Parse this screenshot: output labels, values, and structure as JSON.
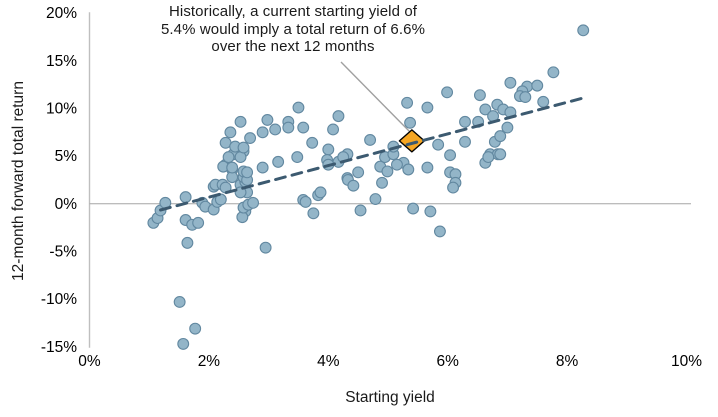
{
  "chart_data": {
    "type": "scatter",
    "title": "",
    "xlabel": "Starting yield",
    "ylabel": "12-month forward total return",
    "xlim": [
      0,
      10
    ],
    "ylim": [
      -15,
      20
    ],
    "x_ticks": [
      {
        "v": 0,
        "label": "0%"
      },
      {
        "v": 2,
        "label": "2%"
      },
      {
        "v": 4,
        "label": "4%"
      },
      {
        "v": 6,
        "label": "6%"
      },
      {
        "v": 8,
        "label": "8%"
      },
      {
        "v": 10,
        "label": "10%"
      }
    ],
    "y_ticks": [
      {
        "v": 20,
        "label": "20%"
      },
      {
        "v": 15,
        "label": "15%"
      },
      {
        "v": 10,
        "label": "10%"
      },
      {
        "v": 5,
        "label": "5%"
      },
      {
        "v": 0,
        "label": "0%"
      },
      {
        "v": -5,
        "label": "-5%"
      },
      {
        "v": -10,
        "label": "-10%"
      },
      {
        "v": -15,
        "label": "-15%"
      }
    ],
    "grid": "zero-line-only",
    "legend": "none",
    "annotation": {
      "lines": [
        "Historically, a current starting yield of",
        "5.4% would imply a total return of 6.6%",
        "over the next 12 months"
      ]
    },
    "highlight_point": {
      "x": 5.4,
      "y": 6.6,
      "shape": "diamond"
    },
    "trend_line": {
      "style": "dashed",
      "x1": 1.19,
      "y1": -0.65,
      "x2": 8.3,
      "y2": 11.15
    },
    "points": [
      [
        1.07,
        -2.0
      ],
      [
        1.14,
        -1.5
      ],
      [
        1.19,
        -0.7
      ],
      [
        1.27,
        0.1
      ],
      [
        1.51,
        -10.3
      ],
      [
        1.77,
        -13.1
      ],
      [
        1.57,
        -14.7
      ],
      [
        1.61,
        0.7
      ],
      [
        1.89,
        0.1
      ],
      [
        1.94,
        -0.3
      ],
      [
        2.08,
        -0.6
      ],
      [
        2.14,
        0.2
      ],
      [
        2.2,
        0.45
      ],
      [
        1.61,
        -1.7
      ],
      [
        1.72,
        -2.2
      ],
      [
        1.82,
        -2.0
      ],
      [
        1.64,
        -4.1
      ],
      [
        2.08,
        1.8
      ],
      [
        2.11,
        2.0
      ],
      [
        2.23,
        2.0
      ],
      [
        2.28,
        1.7
      ],
      [
        2.53,
        2.0
      ],
      [
        2.61,
        -0.8
      ],
      [
        2.56,
        -1.4
      ],
      [
        2.58,
        -0.4
      ],
      [
        2.66,
        -0.1
      ],
      [
        2.74,
        0.1
      ],
      [
        2.64,
        1.2
      ],
      [
        2.53,
        1.2
      ],
      [
        2.61,
        2.3
      ],
      [
        2.28,
        6.4
      ],
      [
        2.41,
        5.2
      ],
      [
        2.58,
        5.5
      ],
      [
        2.28,
        4.1
      ],
      [
        2.39,
        3.6
      ],
      [
        2.58,
        2.8
      ],
      [
        2.39,
        2.8
      ],
      [
        2.64,
        2.5
      ],
      [
        2.33,
        4.9
      ],
      [
        2.53,
        4.9
      ],
      [
        2.24,
        3.9
      ],
      [
        2.39,
        3.8
      ],
      [
        2.58,
        3.4
      ],
      [
        2.64,
        3.3
      ],
      [
        2.44,
        6.0
      ],
      [
        2.58,
        5.9
      ],
      [
        2.36,
        7.5
      ],
      [
        2.53,
        8.6
      ],
      [
        2.69,
        6.9
      ],
      [
        2.9,
        7.5
      ],
      [
        2.98,
        8.8
      ],
      [
        3.11,
        7.8
      ],
      [
        3.33,
        8.6
      ],
      [
        3.33,
        8.0
      ],
      [
        3.58,
        8.0
      ],
      [
        3.5,
        10.1
      ],
      [
        3.73,
        6.4
      ],
      [
        3.48,
        4.9
      ],
      [
        3.16,
        4.4
      ],
      [
        2.9,
        3.8
      ],
      [
        3.58,
        0.4
      ],
      [
        3.62,
        0.2
      ],
      [
        3.83,
        0.9
      ],
      [
        3.87,
        1.2
      ],
      [
        3.75,
        -1.0
      ],
      [
        2.95,
        -4.6
      ],
      [
        4.17,
        9.2
      ],
      [
        4.08,
        7.8
      ],
      [
        4.0,
        5.7
      ],
      [
        3.98,
        4.6
      ],
      [
        4.17,
        4.4
      ],
      [
        4.0,
        4.1
      ],
      [
        4.32,
        5.2
      ],
      [
        4.32,
        2.7
      ],
      [
        4.33,
        2.5
      ],
      [
        4.25,
        4.9
      ],
      [
        4.42,
        1.9
      ],
      [
        4.5,
        3.3
      ],
      [
        4.54,
        -0.7
      ],
      [
        4.7,
        6.7
      ],
      [
        4.79,
        0.5
      ],
      [
        4.87,
        3.9
      ],
      [
        4.99,
        3.4
      ],
      [
        4.9,
        2.2
      ],
      [
        4.95,
        4.9
      ],
      [
        5.09,
        5.2
      ],
      [
        5.09,
        6.0
      ],
      [
        5.26,
        4.3
      ],
      [
        5.34,
        3.6
      ],
      [
        5.32,
        10.6
      ],
      [
        5.37,
        8.5
      ],
      [
        5.66,
        10.1
      ],
      [
        5.99,
        11.7
      ],
      [
        5.66,
        3.8
      ],
      [
        5.84,
        6.2
      ],
      [
        6.04,
        5.1
      ],
      [
        6.04,
        3.3
      ],
      [
        6.13,
        3.1
      ],
      [
        6.13,
        2.2
      ],
      [
        6.09,
        1.7
      ],
      [
        5.42,
        -0.5
      ],
      [
        5.71,
        -0.8
      ],
      [
        5.87,
        -2.9
      ],
      [
        5.15,
        4.1
      ],
      [
        6.29,
        8.6
      ],
      [
        6.29,
        6.5
      ],
      [
        6.51,
        8.6
      ],
      [
        6.54,
        11.4
      ],
      [
        6.63,
        9.9
      ],
      [
        6.76,
        9.2
      ],
      [
        6.83,
        10.4
      ],
      [
        6.63,
        4.3
      ],
      [
        6.71,
        5.2
      ],
      [
        6.84,
        5.2
      ],
      [
        6.68,
        4.9
      ],
      [
        6.79,
        6.5
      ],
      [
        6.88,
        7.1
      ],
      [
        6.93,
        9.9
      ],
      [
        7.0,
        8.0
      ],
      [
        6.88,
        5.2
      ],
      [
        7.05,
        12.7
      ],
      [
        7.33,
        12.3
      ],
      [
        7.5,
        12.4
      ],
      [
        7.25,
        11.8
      ],
      [
        7.21,
        11.3
      ],
      [
        7.3,
        11.2
      ],
      [
        7.6,
        10.7
      ],
      [
        7.05,
        9.6
      ],
      [
        7.77,
        13.8
      ],
      [
        8.27,
        18.2
      ]
    ],
    "colors": {
      "point_fill": "#93B5C8",
      "point_stroke": "#6288A0",
      "trend": "#3C5A70",
      "diamond_fill": "#F5A623",
      "diamond_stroke": "#000000",
      "leader": "#A0A0A0",
      "axis_line": "#BFBFBF",
      "zero_line": "#A6A6A6",
      "text": "#000000"
    }
  }
}
